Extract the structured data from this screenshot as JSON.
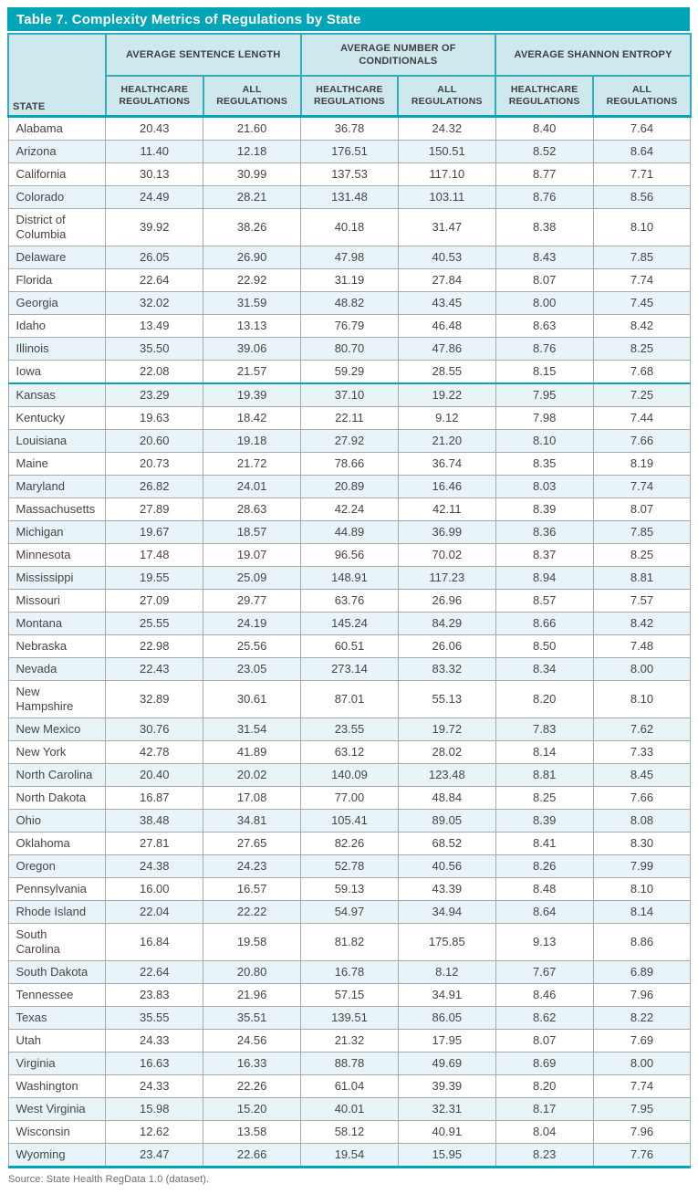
{
  "title": "Table 7. Complexity Metrics of Regulations by State",
  "source_note": "Source: State Health RegData 1.0 (dataset).",
  "colors": {
    "accent_teal": "#00a5b8",
    "header_bg": "#cfe8ed",
    "alt_row_bg": "#e9f4f8",
    "body_border": "#a9a9a9"
  },
  "table": {
    "state_header": "STATE",
    "groups": [
      {
        "label": "AVERAGE SENTENCE LENGTH"
      },
      {
        "label": "AVERAGE NUMBER OF\nCONDITIONALS"
      },
      {
        "label": "AVERAGE SHANNON ENTROPY"
      }
    ],
    "subheader_healthcare": "HEALTHCARE\nREGULATIONS",
    "subheader_all": "ALL\nREGULATIONS",
    "rows": [
      {
        "state": "Alabama",
        "values": [
          "20.43",
          "21.60",
          "36.78",
          "24.32",
          "8.40",
          "7.64"
        ]
      },
      {
        "state": "Arizona",
        "values": [
          "11.40",
          "12.18",
          "176.51",
          "150.51",
          "8.52",
          "8.64"
        ]
      },
      {
        "state": "California",
        "values": [
          "30.13",
          "30.99",
          "137.53",
          "117.10",
          "8.77",
          "7.71"
        ]
      },
      {
        "state": "Colorado",
        "values": [
          "24.49",
          "28.21",
          "131.48",
          "103.11",
          "8.76",
          "8.56"
        ]
      },
      {
        "state": "District of\nColumbia",
        "values": [
          "39.92",
          "38.26",
          "40.18",
          "31.47",
          "8.38",
          "8.10"
        ]
      },
      {
        "state": "Delaware",
        "values": [
          "26.05",
          "26.90",
          "47.98",
          "40.53",
          "8.43",
          "7.85"
        ]
      },
      {
        "state": "Florida",
        "values": [
          "22.64",
          "22.92",
          "31.19",
          "27.84",
          "8.07",
          "7.74"
        ]
      },
      {
        "state": "Georgia",
        "values": [
          "32.02",
          "31.59",
          "48.82",
          "43.45",
          "8.00",
          "7.45"
        ]
      },
      {
        "state": "Idaho",
        "values": [
          "13.49",
          "13.13",
          "76.79",
          "46.48",
          "8.63",
          "8.42"
        ]
      },
      {
        "state": "Illinois",
        "values": [
          "35.50",
          "39.06",
          "80.70",
          "47.86",
          "8.76",
          "8.25"
        ]
      },
      {
        "state": "Iowa",
        "values": [
          "22.08",
          "21.57",
          "59.29",
          "28.55",
          "8.15",
          "7.68"
        ],
        "divider_after": true
      },
      {
        "state": "Kansas",
        "values": [
          "23.29",
          "19.39",
          "37.10",
          "19.22",
          "7.95",
          "7.25"
        ]
      },
      {
        "state": "Kentucky",
        "values": [
          "19.63",
          "18.42",
          "22.11",
          "9.12",
          "7.98",
          "7.44"
        ]
      },
      {
        "state": "Louisiana",
        "values": [
          "20.60",
          "19.18",
          "27.92",
          "21.20",
          "8.10",
          "7.66"
        ]
      },
      {
        "state": "Maine",
        "values": [
          "20.73",
          "21.72",
          "78.66",
          "36.74",
          "8.35",
          "8.19"
        ]
      },
      {
        "state": "Maryland",
        "values": [
          "26.82",
          "24.01",
          "20.89",
          "16.46",
          "8.03",
          "7.74"
        ]
      },
      {
        "state": "Massachusetts",
        "values": [
          "27.89",
          "28.63",
          "42.24",
          "42.11",
          "8.39",
          "8.07"
        ]
      },
      {
        "state": "Michigan",
        "values": [
          "19.67",
          "18.57",
          "44.89",
          "36.99",
          "8.36",
          "7.85"
        ]
      },
      {
        "state": "Minnesota",
        "values": [
          "17.48",
          "19.07",
          "96.56",
          "70.02",
          "8.37",
          "8.25"
        ]
      },
      {
        "state": "Mississippi",
        "values": [
          "19.55",
          "25.09",
          "148.91",
          "117.23",
          "8.94",
          "8.81"
        ]
      },
      {
        "state": "Missouri",
        "values": [
          "27.09",
          "29.77",
          "63.76",
          "26.96",
          "8.57",
          "7.57"
        ]
      },
      {
        "state": "Montana",
        "values": [
          "25.55",
          "24.19",
          "145.24",
          "84.29",
          "8.66",
          "8.42"
        ]
      },
      {
        "state": "Nebraska",
        "values": [
          "22.98",
          "25.56",
          "60.51",
          "26.06",
          "8.50",
          "7.48"
        ]
      },
      {
        "state": "Nevada",
        "values": [
          "22.43",
          "23.05",
          "273.14",
          "83.32",
          "8.34",
          "8.00"
        ]
      },
      {
        "state": "New\nHampshire",
        "values": [
          "32.89",
          "30.61",
          "87.01",
          "55.13",
          "8.20",
          "8.10"
        ]
      },
      {
        "state": "New Mexico",
        "values": [
          "30.76",
          "31.54",
          "23.55",
          "19.72",
          "7.83",
          "7.62"
        ]
      },
      {
        "state": "New York",
        "values": [
          "42.78",
          "41.89",
          "63.12",
          "28.02",
          "8.14",
          "7.33"
        ]
      },
      {
        "state": "North Carolina",
        "values": [
          "20.40",
          "20.02",
          "140.09",
          "123.48",
          "8.81",
          "8.45"
        ]
      },
      {
        "state": "North Dakota",
        "values": [
          "16.87",
          "17.08",
          "77.00",
          "48.84",
          "8.25",
          "7.66"
        ]
      },
      {
        "state": "Ohio",
        "values": [
          "38.48",
          "34.81",
          "105.41",
          "89.05",
          "8.39",
          "8.08"
        ]
      },
      {
        "state": "Oklahoma",
        "values": [
          "27.81",
          "27.65",
          "82.26",
          "68.52",
          "8.41",
          "8.30"
        ]
      },
      {
        "state": "Oregon",
        "values": [
          "24.38",
          "24.23",
          "52.78",
          "40.56",
          "8.26",
          "7.99"
        ]
      },
      {
        "state": "Pennsylvania",
        "values": [
          "16.00",
          "16.57",
          "59.13",
          "43.39",
          "8.48",
          "8.10"
        ]
      },
      {
        "state": "Rhode Island",
        "values": [
          "22.04",
          "22.22",
          "54.97",
          "34.94",
          "8.64",
          "8.14"
        ]
      },
      {
        "state": "South\nCarolina",
        "values": [
          "16.84",
          "19.58",
          "81.82",
          "175.85",
          "9.13",
          "8.86"
        ]
      },
      {
        "state": "South Dakota",
        "values": [
          "22.64",
          "20.80",
          "16.78",
          "8.12",
          "7.67",
          "6.89"
        ]
      },
      {
        "state": "Tennessee",
        "values": [
          "23.83",
          "21.96",
          "57.15",
          "34.91",
          "8.46",
          "7.96"
        ]
      },
      {
        "state": "Texas",
        "values": [
          "35.55",
          "35.51",
          "139.51",
          "86.05",
          "8.62",
          "8.22"
        ]
      },
      {
        "state": "Utah",
        "values": [
          "24.33",
          "24.56",
          "21.32",
          "17.95",
          "8.07",
          "7.69"
        ]
      },
      {
        "state": "Virginia",
        "values": [
          "16.63",
          "16.33",
          "88.78",
          "49.69",
          "8.69",
          "8.00"
        ]
      },
      {
        "state": "Washington",
        "values": [
          "24.33",
          "22.26",
          "61.04",
          "39.39",
          "8.20",
          "7.74"
        ]
      },
      {
        "state": "West Virginia",
        "values": [
          "15.98",
          "15.20",
          "40.01",
          "32.31",
          "8.17",
          "7.95"
        ]
      },
      {
        "state": "Wisconsin",
        "values": [
          "12.62",
          "13.58",
          "58.12",
          "40.91",
          "8.04",
          "7.96"
        ]
      },
      {
        "state": "Wyoming",
        "values": [
          "23.47",
          "22.66",
          "19.54",
          "15.95",
          "8.23",
          "7.76"
        ]
      }
    ]
  }
}
